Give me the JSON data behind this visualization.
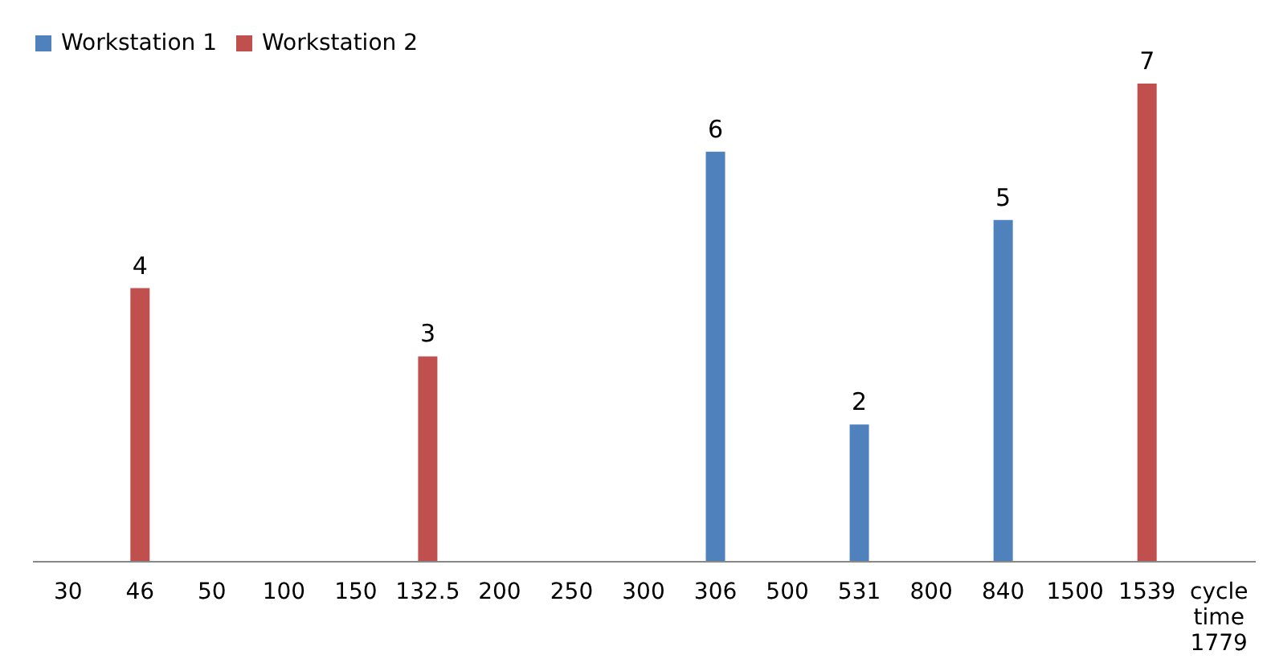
{
  "chart_data": {
    "type": "bar",
    "categories": [
      "30",
      "46",
      "50",
      "100",
      "150",
      "132.5",
      "200",
      "250",
      "300",
      "306",
      "500",
      "531",
      "800",
      "840",
      "1500",
      "1539",
      "cycle time 1779"
    ],
    "series": [
      {
        "name": "Workstation 1",
        "color": "#4f81bd",
        "values": [
          null,
          null,
          null,
          null,
          null,
          null,
          null,
          null,
          null,
          6,
          null,
          2,
          null,
          5,
          null,
          null,
          null
        ]
      },
      {
        "name": "Workstation 2",
        "color": "#c0504d",
        "values": [
          null,
          4,
          null,
          null,
          null,
          3,
          null,
          null,
          null,
          null,
          null,
          null,
          null,
          null,
          null,
          7,
          null
        ]
      }
    ],
    "data_labels": true,
    "legend": "top",
    "grid": false
  }
}
